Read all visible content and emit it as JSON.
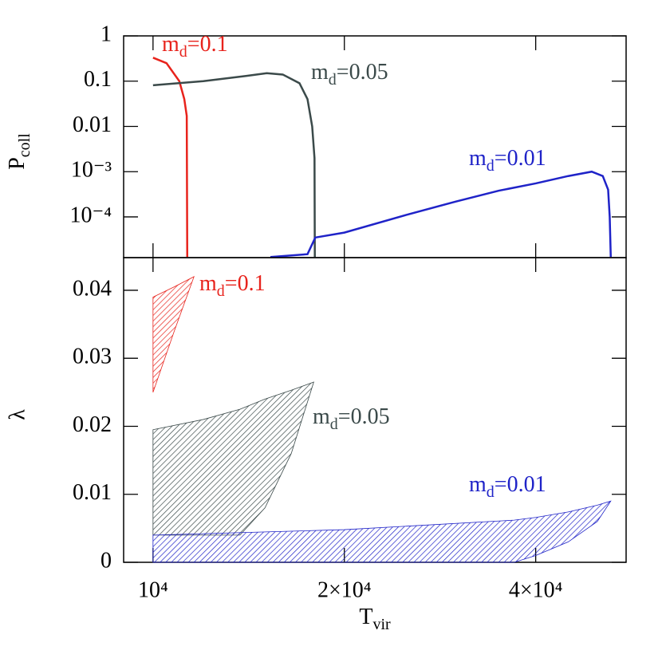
{
  "chart_data": [
    {
      "type": "line",
      "ylabel": "Pcoll",
      "log_x": true,
      "log_y": true,
      "xlim": [
        8990,
        55500
      ],
      "ylim": [
        1.26e-05,
        1
      ],
      "xticks": [
        {
          "value": 10000,
          "label": "10⁴"
        },
        {
          "value": 20000,
          "label": "2×10⁴"
        },
        {
          "value": 40000,
          "label": "4×10⁴"
        }
      ],
      "yticks": [
        1,
        0.1,
        0.01,
        {
          "value": 0.001,
          "label": "10⁻³"
        },
        {
          "value": 0.0001,
          "label": "10⁻⁴"
        }
      ],
      "series": [
        {
          "name": "md=0.1",
          "color": "#e8231c",
          "x": [
            10000,
            10500,
            11000,
            11200,
            11300,
            11320
          ],
          "values": [
            0.33,
            0.25,
            0.1,
            0.04,
            0.017,
            1.3e-05
          ]
        },
        {
          "name": "md=0.05",
          "color": "#3b4a4a",
          "x": [
            10000,
            12000,
            14000,
            15100,
            16000,
            17000,
            17500,
            17800,
            17950,
            17970
          ],
          "values": [
            0.081,
            0.1,
            0.13,
            0.15,
            0.14,
            0.09,
            0.04,
            0.01,
            0.002,
            1.3e-05
          ]
        },
        {
          "name": "md=0.01",
          "color": "#1f23c8",
          "x": [
            15300,
            17500,
            18000,
            20000,
            25000,
            30000,
            35000,
            40000,
            45000,
            49000,
            51000,
            52000,
            52300,
            52500
          ],
          "values": [
            1.3e-05,
            1.5e-05,
            3.5e-05,
            4.5e-05,
            0.00011,
            0.00022,
            0.00038,
            0.00055,
            0.0008,
            0.001,
            0.0008,
            0.0004,
            0.0001,
            1.3e-05
          ]
        }
      ]
    },
    {
      "type": "range-area",
      "ylabel": "λ",
      "xlabel": "Tvir",
      "log_x": true,
      "xlim": [
        8990,
        55500
      ],
      "ylim": [
        0,
        0.0448
      ],
      "xticks": [
        {
          "value": 10000,
          "label": "10⁴"
        },
        {
          "value": 20000,
          "label": "2×10⁴"
        },
        {
          "value": 40000,
          "label": "4×10⁴"
        }
      ],
      "yticks": [
        0,
        0.01,
        0.02,
        0.03,
        0.04
      ],
      "series": [
        {
          "name": "md=0.1",
          "color": "#e8231c",
          "x": [
            10000,
            10800,
            11600
          ],
          "lower": [
            0.025,
            0.034,
            0.042
          ],
          "upper": [
            0.039,
            0.0405,
            0.042
          ]
        },
        {
          "name": "md=0.05",
          "color": "#3b4a4a",
          "x": [
            10000,
            12000,
            13700,
            15000,
            16500,
            17900
          ],
          "lower": [
            0.004,
            0.004,
            0.004,
            0.008,
            0.016,
            0.0265
          ],
          "upper": [
            0.0195,
            0.021,
            0.0225,
            0.024,
            0.0253,
            0.0265
          ]
        },
        {
          "name": "md=0.01",
          "color": "#1f23c8",
          "x": [
            10000,
            20000,
            37000,
            40000,
            45000,
            50000,
            52500
          ],
          "lower": [
            0,
            0,
            0,
            0.001,
            0.003,
            0.006,
            0.009
          ],
          "upper": [
            0.004,
            0.0048,
            0.0062,
            0.0066,
            0.0074,
            0.0084,
            0.009
          ]
        }
      ]
    }
  ]
}
